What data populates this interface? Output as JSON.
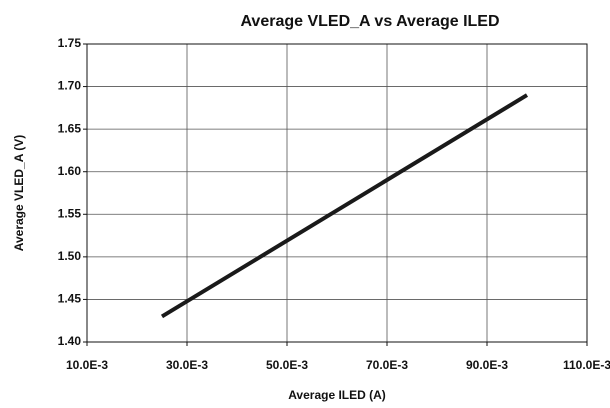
{
  "chart_data": {
    "type": "line",
    "title": "Average VLED_A vs Average ILED",
    "xlabel": "Average ILED (A)",
    "ylabel": "Average VLED_A (V)",
    "x": [
      0.025,
      0.098
    ],
    "series": [
      {
        "name": "Average VLED_A",
        "color": "#1a1a1a",
        "values": [
          1.43,
          1.69
        ]
      }
    ],
    "xlim": [
      0.01,
      0.11
    ],
    "xticks": [
      {
        "value": 0.01,
        "label": "10.0E-3"
      },
      {
        "value": 0.03,
        "label": "30.0E-3"
      },
      {
        "value": 0.05,
        "label": "50.0E-3"
      },
      {
        "value": 0.07,
        "label": "70.0E-3"
      },
      {
        "value": 0.09,
        "label": "90.0E-3"
      },
      {
        "value": 0.11,
        "label": "110.0E-3"
      }
    ],
    "ylim": [
      1.4,
      1.75
    ],
    "yticks": [
      {
        "value": 1.4,
        "label": "1.40"
      },
      1.45,
      {
        "value": 1.5,
        "label": "1.50"
      },
      1.55,
      {
        "value": 1.6,
        "label": "1.60"
      },
      1.65,
      {
        "value": 1.7,
        "label": "1.70"
      },
      1.75
    ],
    "grid": true
  }
}
